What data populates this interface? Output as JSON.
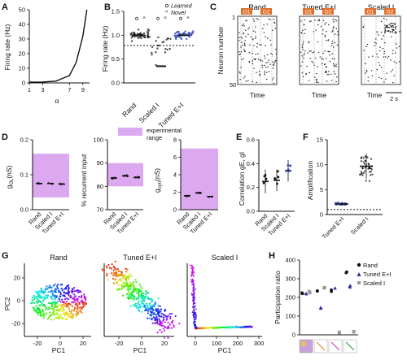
{
  "panels": [
    "A",
    "B",
    "C",
    "D",
    "E",
    "F",
    "G",
    "H"
  ],
  "A": {
    "xlabel": "α",
    "ylabel": "Firing rate (Hz)",
    "xticks": [
      "1",
      "3",
      "7",
      "9"
    ],
    "yticks": [
      "0",
      "10",
      "20",
      "30",
      "40",
      "50"
    ],
    "chart_data": {
      "type": "line",
      "x": [
        1,
        3,
        5,
        7,
        8,
        9,
        9.6
      ],
      "y": [
        0.5,
        0.6,
        1.2,
        5,
        14,
        32,
        50
      ],
      "xlim": [
        1,
        10
      ],
      "ylim": [
        0,
        50
      ]
    }
  },
  "B": {
    "ylabel": "Firing rate (Hz)",
    "yticks": [
      "0.0",
      "0.5",
      "1.0",
      "1.5"
    ],
    "legend": {
      "learned": "Learned",
      "novel": "Novel"
    },
    "categories": [
      "Rand",
      "Scaled I",
      "Tuned E+I"
    ],
    "chart_data": {
      "type": "scatter",
      "categories": [
        "Rand",
        "Scaled I",
        "Tuned E+I"
      ],
      "means": [
        1.0,
        0.35,
        1.0
      ],
      "ylim": [
        0,
        1.5
      ],
      "reference_line": 1.0
    }
  },
  "C": {
    "titles": [
      "Rand",
      "Tuned E+I",
      "Scaled I"
    ],
    "odors": [
      "O1",
      "O2"
    ],
    "ylabel": "Neuron number",
    "xlabel": "Time",
    "yticks": [
      "1",
      "50"
    ],
    "scalebar": "2 s"
  },
  "D": {
    "legend": [
      "experimental",
      "range"
    ],
    "sub1": {
      "ylabel": "g",
      "ysub": "OL",
      "yunit": "(nS)",
      "yticks": [
        "0.0",
        "0.1",
        "0.2"
      ],
      "cats": [
        "Rand",
        "Scaled I",
        "Tuned E+I"
      ],
      "chart_data": {
        "type": "scatter",
        "means": [
          0.075,
          0.075,
          0.073
        ],
        "ylim": [
          0,
          0.2
        ],
        "exp_range": [
          0.035,
          0.16
        ]
      }
    },
    "sub2": {
      "ylabel": "% recurrent input",
      "yticks": [
        "70",
        "80",
        "90",
        "100"
      ],
      "cats": [
        "Rand",
        "Scaled I",
        "Tuned E+I"
      ],
      "chart_data": {
        "type": "scatter",
        "means": [
          83.5,
          84.5,
          83.8
        ],
        "ylim": [
          70,
          100
        ],
        "exp_range": [
          80,
          90
        ]
      }
    },
    "sub3": {
      "ylabel": "g",
      "ysub": "syn",
      "yunit": "(nS)",
      "yticks": [
        "0",
        "2",
        "4",
        "6",
        "8"
      ],
      "cats": [
        "Rand",
        "Scaled I",
        "Tuned E+I"
      ],
      "chart_data": {
        "type": "scatter",
        "means": [
          1.6,
          1.9,
          1.5
        ],
        "ylim": [
          0,
          8
        ],
        "exp_range": [
          0,
          7
        ]
      }
    }
  },
  "E": {
    "ylabel": "Correlation gE, gI",
    "yticks": [
      "0.0",
      "0.2",
      "0.4",
      "0.6"
    ],
    "cats": [
      "Rand",
      "Scaled I",
      "Tuned E+I"
    ],
    "chart_data": {
      "type": "scatter",
      "means": [
        0.25,
        0.26,
        0.34
      ],
      "sd": [
        0.1,
        0.09,
        0.09
      ],
      "ylim": [
        0,
        0.6
      ]
    }
  },
  "F": {
    "ylabel": "Amplification",
    "yticks": [
      "0",
      "5",
      "10",
      "15"
    ],
    "cats": [
      "Tuned E+I",
      "Scaled I"
    ],
    "chart_data": {
      "type": "scatter",
      "means": [
        2.1,
        9.7
      ],
      "sd": [
        0.3,
        2.5
      ],
      "ylim": [
        0,
        15
      ],
      "reference_line": 1
    }
  },
  "G": {
    "titles": [
      "Rand",
      "Tuned E+I",
      "Scaled I"
    ],
    "ylabel": "PC2",
    "xlabel": "PC1",
    "xticks1": [
      "-20",
      "0",
      "20"
    ],
    "yticks1": [
      "-20",
      "0",
      "20"
    ],
    "xticks2": [
      "-20",
      "0",
      "20"
    ],
    "xticks3": [
      "0",
      "100",
      "200",
      "300"
    ]
  },
  "H": {
    "ylabel": "Participation ratio",
    "yticks": [
      "0",
      "100",
      "200",
      "300",
      "400"
    ],
    "legend": [
      "Rand",
      "Tuned E+I",
      "Scaled I"
    ],
    "chart_data": {
      "type": "scatter",
      "groups": 4,
      "series": [
        {
          "name": "Rand",
          "values": [
            225,
            232,
            240,
            335
          ]
        },
        {
          "name": "Tuned E+I",
          "values": [
            220,
            142,
            248,
            262
          ]
        },
        {
          "name": "Scaled I",
          "values": [
            232,
            252,
            10,
            18
          ]
        }
      ],
      "ylim": [
        0,
        400
      ]
    }
  }
}
